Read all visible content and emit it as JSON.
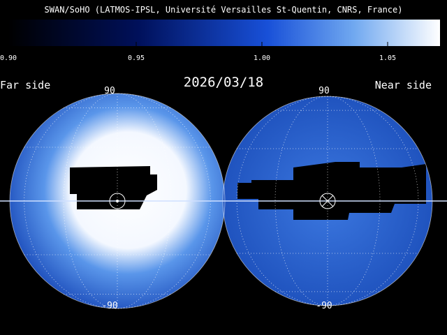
{
  "header": {
    "title": "SWAN/SoHO (LATMOS-IPSL, Université Versailles St-Quentin, CNRS, France)"
  },
  "colorbar": {
    "tick_labels": [
      "0.90",
      "0.95",
      "1.00",
      "1.05"
    ]
  },
  "date": "2026/03/18",
  "far_side": {
    "label": "Far side",
    "top_label": "90",
    "bottom_label": "-90"
  },
  "near_side": {
    "label": "Near side",
    "top_label": "90",
    "bottom_label": "-90"
  }
}
